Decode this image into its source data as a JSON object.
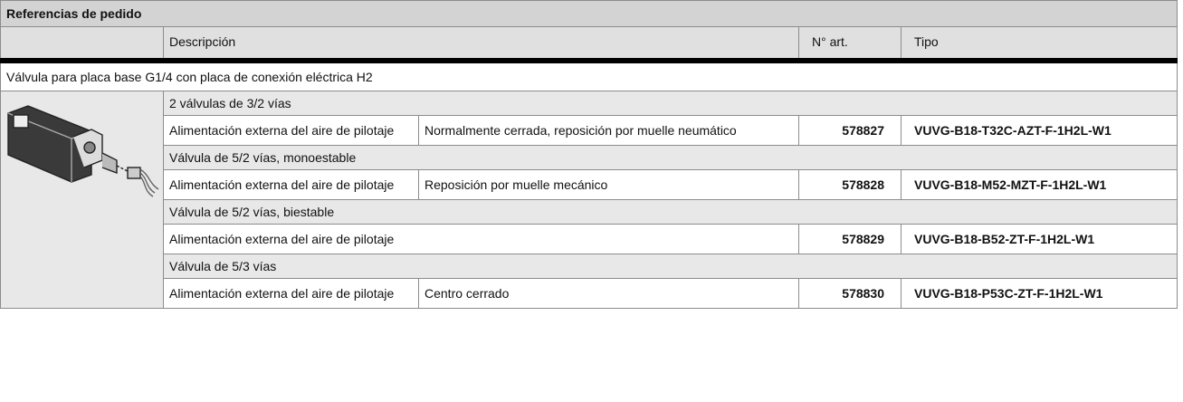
{
  "title": "Referencias de pedido",
  "header": {
    "description": "Descripción",
    "article_no": "N° art.",
    "type": "Tipo"
  },
  "section": "Válvula para placa base G1/4 con placa de conexión eléctrica H2",
  "groups": [
    {
      "heading": "2 válvulas de 3/2 vías",
      "items": [
        {
          "description": [
            "Alimentación externa del aire de pilotaje",
            "Normalmente cerrada, reposición por muelle neumático"
          ],
          "article_no": "578827",
          "type": "VUVG-B18-T32C-AZT-F-1H2L-W1"
        }
      ]
    },
    {
      "heading": "Válvula de 5/2 vías, monoestable",
      "items": [
        {
          "description": [
            "Alimentación externa del aire de pilotaje",
            "Reposición por muelle mecánico"
          ],
          "article_no": "578828",
          "type": "VUVG-B18-M52-MZT-F-1H2L-W1"
        }
      ]
    },
    {
      "heading": "Válvula de 5/2 vías, biestable",
      "items": [
        {
          "description": [
            "Alimentación externa del aire de pilotaje"
          ],
          "article_no": "578829",
          "type": "VUVG-B18-B52-ZT-F-1H2L-W1"
        }
      ]
    },
    {
      "heading": "Válvula de 5/3 vías",
      "items": [
        {
          "description": [
            "Alimentación externa del aire de pilotaje",
            "Centro cerrado"
          ],
          "article_no": "578830",
          "type": "VUVG-B18-P53C-ZT-F-1H2L-W1"
        }
      ]
    }
  ]
}
